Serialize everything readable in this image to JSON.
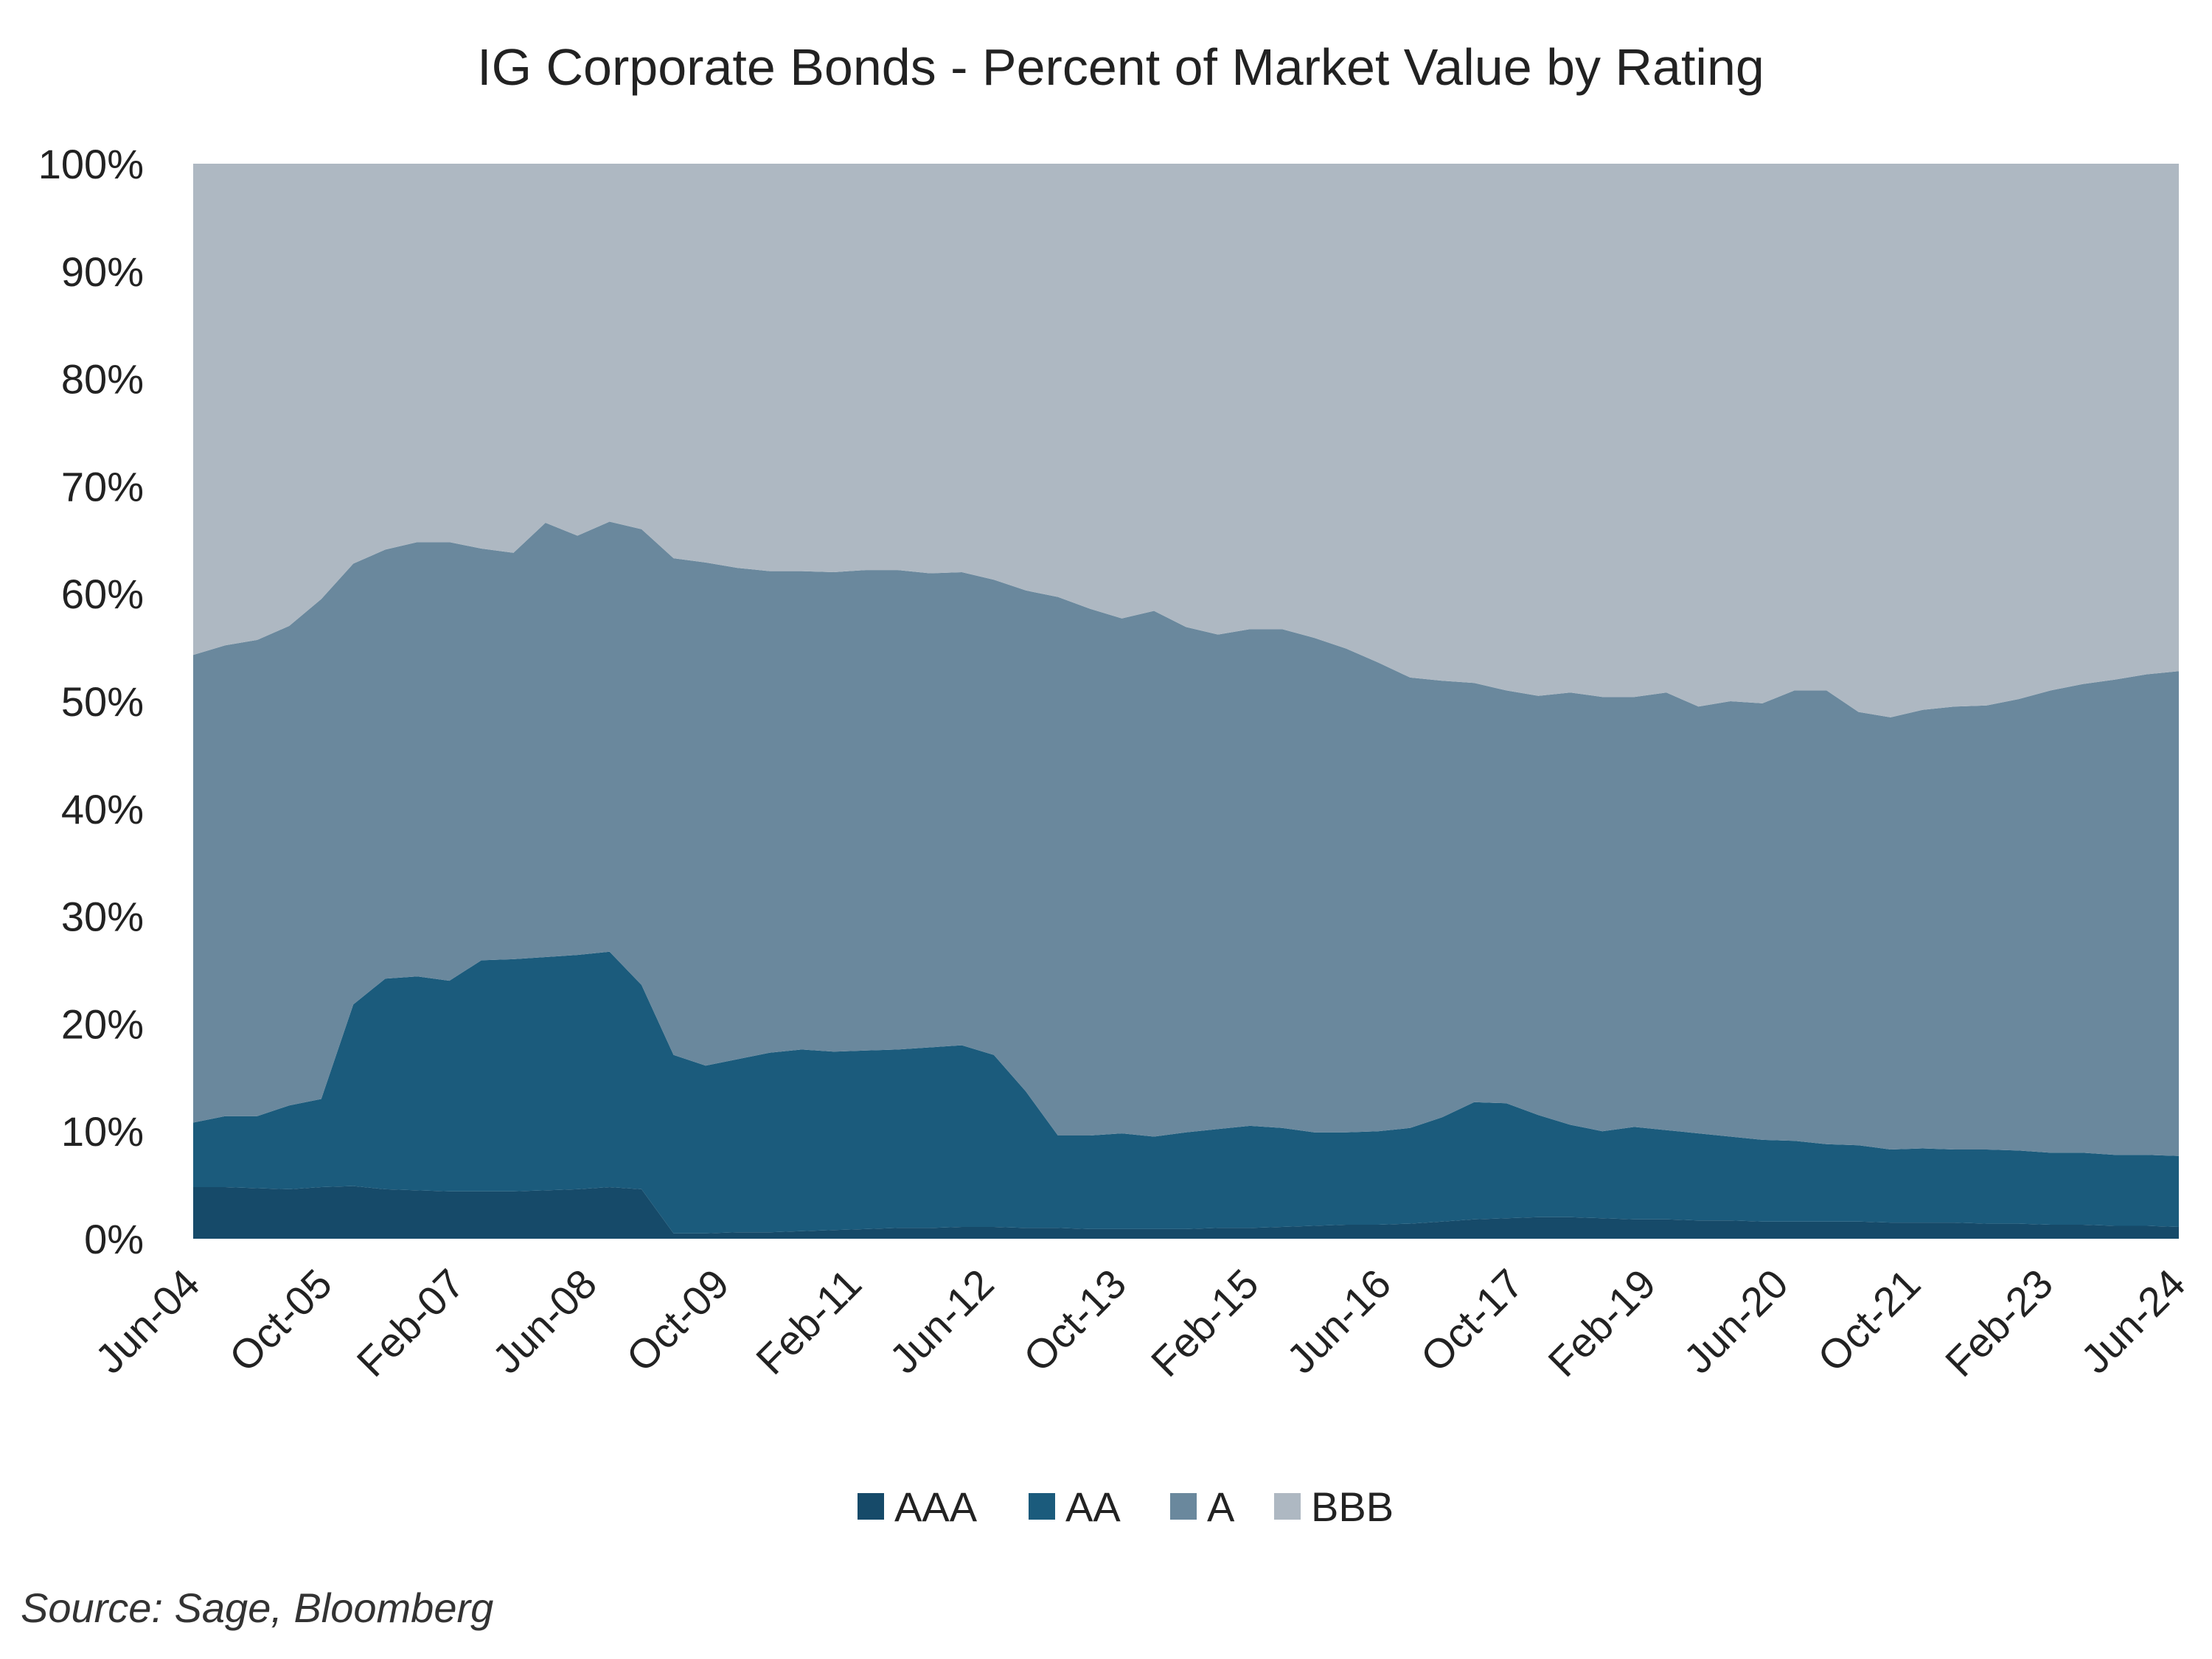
{
  "chart_data": {
    "type": "area",
    "stacked": true,
    "normalized_percent": true,
    "title": "IG Corporate Bonds - Percent of Market Value by Rating",
    "xlabel": "",
    "ylabel": "",
    "ylim": [
      0,
      100
    ],
    "ytick_labels": [
      "0%",
      "10%",
      "20%",
      "30%",
      "40%",
      "50%",
      "60%",
      "70%",
      "80%",
      "90%",
      "100%"
    ],
    "xtick_labels": [
      "Jun-04",
      "Oct-05",
      "Feb-07",
      "Jun-08",
      "Oct-09",
      "Feb-11",
      "Jun-12",
      "Oct-13",
      "Feb-15",
      "Jun-16",
      "Oct-17",
      "Feb-19",
      "Jun-20",
      "Oct-21",
      "Feb-23",
      "Jun-24"
    ],
    "legend_position": "bottom",
    "grid": false,
    "x": [
      "Jun-04",
      "Oct-04",
      "Feb-05",
      "Jun-05",
      "Oct-05",
      "Feb-06",
      "Jun-06",
      "Oct-06",
      "Feb-07",
      "Jun-07",
      "Oct-07",
      "Feb-08",
      "Jun-08",
      "Aug-08",
      "Oct-08",
      "Dec-08",
      "Feb-09",
      "Jun-09",
      "Oct-09",
      "Feb-10",
      "Jun-10",
      "Oct-10",
      "Feb-11",
      "Jun-11",
      "Oct-11",
      "Feb-12",
      "Jun-12",
      "Oct-12",
      "Feb-13",
      "Jun-13",
      "Oct-13",
      "Feb-14",
      "Jun-14",
      "Oct-14",
      "Feb-15",
      "Jun-15",
      "Oct-15",
      "Feb-16",
      "Jun-16",
      "Oct-16",
      "Feb-17",
      "Jun-17",
      "Oct-17",
      "Feb-18",
      "Jun-18",
      "Oct-18",
      "Feb-19",
      "Jun-19",
      "Oct-19",
      "Feb-20",
      "Jun-20",
      "Oct-20",
      "Feb-21",
      "Jun-21",
      "Oct-21",
      "Feb-22",
      "Jun-22",
      "Oct-22",
      "Feb-23",
      "Jun-23",
      "Oct-23",
      "Feb-24",
      "Jun-24"
    ],
    "series": [
      {
        "name": "AAA",
        "color": "#164a69",
        "values": [
          4.8,
          4.8,
          4.7,
          4.6,
          4.8,
          4.9,
          4.6,
          4.5,
          4.4,
          4.4,
          4.4,
          4.5,
          4.6,
          4.8,
          4.6,
          0.5,
          0.5,
          0.6,
          0.6,
          0.7,
          0.8,
          0.9,
          1.0,
          1.0,
          1.1,
          1.1,
          1.0,
          1.0,
          0.9,
          0.9,
          0.9,
          0.9,
          1.0,
          1.0,
          1.1,
          1.2,
          1.3,
          1.3,
          1.4,
          1.6,
          1.8,
          1.9,
          2.0,
          2.0,
          1.9,
          1.8,
          1.8,
          1.7,
          1.7,
          1.6,
          1.6,
          1.6,
          1.6,
          1.5,
          1.5,
          1.5,
          1.4,
          1.4,
          1.3,
          1.3,
          1.2,
          1.2,
          1.1
        ]
      },
      {
        "name": "AA",
        "color": "#1b5b7c",
        "values": [
          6.0,
          6.6,
          6.7,
          7.8,
          8.2,
          16.9,
          19.6,
          19.9,
          19.6,
          21.5,
          21.6,
          21.7,
          21.8,
          21.9,
          19.0,
          16.6,
          15.6,
          16.1,
          16.7,
          16.9,
          16.6,
          16.6,
          16.6,
          16.8,
          16.9,
          16.0,
          12.7,
          8.6,
          8.7,
          8.9,
          8.6,
          9.0,
          9.2,
          9.5,
          9.2,
          8.7,
          8.6,
          8.7,
          8.9,
          9.7,
          10.9,
          10.7,
          9.5,
          8.6,
          8.1,
          8.6,
          8.3,
          8.1,
          7.8,
          7.6,
          7.5,
          7.2,
          7.1,
          6.8,
          6.9,
          6.8,
          6.9,
          6.8,
          6.7,
          6.7,
          6.6,
          6.6,
          6.6
        ]
      },
      {
        "name": "A",
        "color": "#6a889d",
        "values": [
          43.5,
          43.8,
          44.3,
          44.6,
          46.5,
          41.0,
          39.9,
          40.4,
          40.8,
          38.3,
          37.8,
          40.4,
          39.0,
          40.0,
          42.4,
          46.2,
          46.8,
          45.7,
          44.8,
          44.5,
          44.6,
          44.7,
          44.6,
          44.1,
          44.0,
          44.2,
          46.6,
          50.1,
          49.0,
          47.9,
          48.9,
          47.0,
          46.0,
          46.2,
          46.4,
          46.0,
          45.0,
          43.6,
          41.9,
          40.6,
          39.0,
          38.4,
          39.0,
          40.2,
          40.4,
          40.0,
          40.7,
          39.7,
          40.5,
          40.6,
          41.9,
          42.2,
          40.3,
          40.2,
          40.8,
          41.2,
          41.3,
          42.0,
          43.0,
          43.6,
          44.2,
          44.7,
          45.1
        ]
      },
      {
        "name": "BBB",
        "color": "#aeb8c2",
        "values": [
          45.7,
          44.8,
          44.3,
          43.0,
          40.5,
          37.2,
          35.9,
          35.2,
          35.2,
          35.8,
          36.2,
          33.4,
          34.6,
          33.3,
          34.0,
          36.7,
          37.1,
          37.6,
          37.9,
          37.9,
          38.0,
          37.8,
          37.8,
          38.1,
          38.0,
          38.7,
          39.7,
          40.3,
          41.4,
          42.3,
          41.6,
          43.1,
          43.8,
          43.3,
          43.3,
          44.1,
          45.1,
          46.4,
          47.8,
          48.1,
          48.3,
          49.0,
          49.5,
          49.2,
          49.6,
          49.6,
          49.2,
          50.5,
          50.0,
          50.2,
          49.0,
          49.0,
          51.0,
          51.5,
          50.8,
          50.5,
          50.4,
          49.8,
          49.0,
          48.4,
          48.0,
          47.5,
          47.2
        ]
      }
    ]
  },
  "source_note": "Source: Sage, Bloomberg"
}
